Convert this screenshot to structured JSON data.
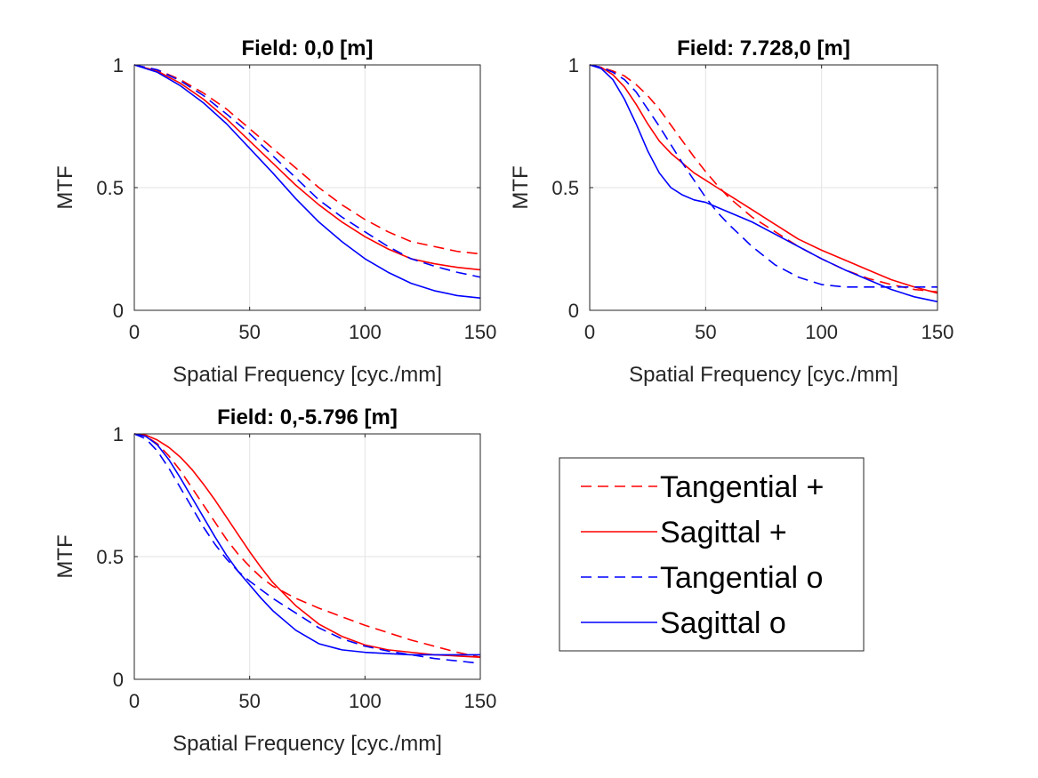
{
  "chart_data": [
    {
      "type": "line",
      "title": "Field: 0,0 [m]",
      "xlabel": "Spatial Frequency [cyc./mm]",
      "ylabel": "MTF",
      "xlim": [
        0,
        150
      ],
      "ylim": [
        0,
        1
      ],
      "xticks": [
        0,
        50,
        100,
        150
      ],
      "yticks": [
        0,
        0.5,
        1
      ],
      "ytick_labels": [
        "0",
        "0.5",
        "1"
      ],
      "grid": true,
      "x": [
        0,
        10,
        20,
        30,
        40,
        50,
        60,
        70,
        80,
        90,
        100,
        110,
        120,
        130,
        140,
        150
      ],
      "series": [
        {
          "name": "Tangential +",
          "color": "#ff0000",
          "dash": "dashed",
          "values": [
            1.0,
            0.98,
            0.94,
            0.885,
            0.82,
            0.74,
            0.66,
            0.58,
            0.5,
            0.43,
            0.37,
            0.32,
            0.28,
            0.26,
            0.24,
            0.23
          ]
        },
        {
          "name": "Sagittal +",
          "color": "#ff0000",
          "dash": "solid",
          "values": [
            1.0,
            0.975,
            0.925,
            0.86,
            0.78,
            0.69,
            0.6,
            0.51,
            0.43,
            0.36,
            0.3,
            0.25,
            0.21,
            0.19,
            0.175,
            0.165
          ]
        },
        {
          "name": "Tangential o",
          "color": "#0000ff",
          "dash": "dashed",
          "values": [
            1.0,
            0.98,
            0.935,
            0.875,
            0.8,
            0.72,
            0.63,
            0.54,
            0.45,
            0.38,
            0.32,
            0.26,
            0.21,
            0.18,
            0.155,
            0.135
          ]
        },
        {
          "name": "Sagittal o",
          "color": "#0000ff",
          "dash": "solid",
          "values": [
            1.0,
            0.97,
            0.915,
            0.845,
            0.76,
            0.66,
            0.56,
            0.455,
            0.36,
            0.28,
            0.21,
            0.155,
            0.11,
            0.08,
            0.06,
            0.05
          ]
        }
      ]
    },
    {
      "type": "line",
      "title": "Field: 7.728,0 [m]",
      "xlabel": "Spatial Frequency [cyc./mm]",
      "ylabel": "MTF",
      "xlim": [
        0,
        150
      ],
      "ylim": [
        0,
        1
      ],
      "xticks": [
        0,
        50,
        100,
        150
      ],
      "yticks": [
        0,
        0.5,
        1
      ],
      "ytick_labels": [
        "0",
        "0.5",
        "1"
      ],
      "grid": true,
      "x": [
        0,
        5,
        10,
        15,
        20,
        25,
        30,
        35,
        40,
        45,
        50,
        55,
        60,
        70,
        80,
        90,
        100,
        110,
        120,
        130,
        140,
        150
      ],
      "series": [
        {
          "name": "Tangential +",
          "color": "#ff0000",
          "dash": "dashed",
          "values": [
            1.0,
            0.99,
            0.975,
            0.955,
            0.92,
            0.875,
            0.82,
            0.755,
            0.69,
            0.625,
            0.565,
            0.51,
            0.46,
            0.38,
            0.32,
            0.26,
            0.21,
            0.165,
            0.13,
            0.105,
            0.085,
            0.075
          ]
        },
        {
          "name": "Sagittal +",
          "color": "#ff0000",
          "dash": "solid",
          "values": [
            1.0,
            0.99,
            0.96,
            0.91,
            0.84,
            0.76,
            0.69,
            0.64,
            0.6,
            0.56,
            0.53,
            0.5,
            0.47,
            0.41,
            0.35,
            0.29,
            0.245,
            0.205,
            0.165,
            0.125,
            0.095,
            0.07
          ]
        },
        {
          "name": "Tangential o",
          "color": "#0000ff",
          "dash": "dashed",
          "values": [
            1.0,
            0.99,
            0.97,
            0.94,
            0.89,
            0.82,
            0.75,
            0.675,
            0.6,
            0.53,
            0.46,
            0.4,
            0.35,
            0.26,
            0.185,
            0.135,
            0.105,
            0.095,
            0.095,
            0.095,
            0.095,
            0.095
          ]
        },
        {
          "name": "Sagittal o",
          "color": "#0000ff",
          "dash": "solid",
          "values": [
            1.0,
            0.985,
            0.94,
            0.86,
            0.76,
            0.65,
            0.56,
            0.5,
            0.47,
            0.45,
            0.44,
            0.42,
            0.4,
            0.36,
            0.31,
            0.26,
            0.21,
            0.165,
            0.125,
            0.085,
            0.055,
            0.035
          ]
        }
      ]
    },
    {
      "type": "line",
      "title": "Field: 0,-5.796 [m]",
      "xlabel": "Spatial Frequency [cyc./mm]",
      "ylabel": "MTF",
      "xlim": [
        0,
        150
      ],
      "ylim": [
        0,
        1
      ],
      "xticks": [
        0,
        50,
        100,
        150
      ],
      "yticks": [
        0,
        0.5,
        1
      ],
      "ytick_labels": [
        "0",
        "0.5",
        "1"
      ],
      "grid": true,
      "x": [
        0,
        5,
        10,
        15,
        20,
        25,
        30,
        35,
        40,
        45,
        50,
        55,
        60,
        70,
        80,
        90,
        100,
        110,
        120,
        130,
        140,
        150
      ],
      "series": [
        {
          "name": "Tangential +",
          "color": "#ff0000",
          "dash": "dashed",
          "values": [
            1.0,
            0.99,
            0.96,
            0.91,
            0.85,
            0.78,
            0.71,
            0.64,
            0.57,
            0.51,
            0.46,
            0.415,
            0.38,
            0.33,
            0.29,
            0.255,
            0.22,
            0.19,
            0.16,
            0.135,
            0.11,
            0.09
          ]
        },
        {
          "name": "Sagittal +",
          "color": "#ff0000",
          "dash": "solid",
          "values": [
            1.0,
            0.995,
            0.975,
            0.945,
            0.905,
            0.855,
            0.795,
            0.73,
            0.66,
            0.59,
            0.52,
            0.455,
            0.395,
            0.3,
            0.225,
            0.175,
            0.14,
            0.12,
            0.11,
            0.1,
            0.095,
            0.09
          ]
        },
        {
          "name": "Tangential o",
          "color": "#0000ff",
          "dash": "dashed",
          "values": [
            1.0,
            0.98,
            0.93,
            0.86,
            0.78,
            0.7,
            0.62,
            0.55,
            0.49,
            0.44,
            0.4,
            0.365,
            0.33,
            0.27,
            0.21,
            0.165,
            0.135,
            0.115,
            0.1,
            0.085,
            0.075,
            0.065
          ]
        },
        {
          "name": "Sagittal o",
          "color": "#0000ff",
          "dash": "solid",
          "values": [
            1.0,
            0.99,
            0.955,
            0.895,
            0.82,
            0.74,
            0.66,
            0.58,
            0.505,
            0.44,
            0.385,
            0.33,
            0.28,
            0.2,
            0.145,
            0.12,
            0.11,
            0.105,
            0.1,
            0.1,
            0.1,
            0.1
          ]
        }
      ]
    }
  ],
  "legend": {
    "entries": [
      {
        "label": "Tangential +",
        "color": "#ff0000",
        "dash": "dashed"
      },
      {
        "label": "Sagittal +",
        "color": "#ff0000",
        "dash": "solid"
      },
      {
        "label": "Tangential o",
        "color": "#0000ff",
        "dash": "dashed"
      },
      {
        "label": "Sagittal o",
        "color": "#0000ff",
        "dash": "solid"
      }
    ]
  }
}
